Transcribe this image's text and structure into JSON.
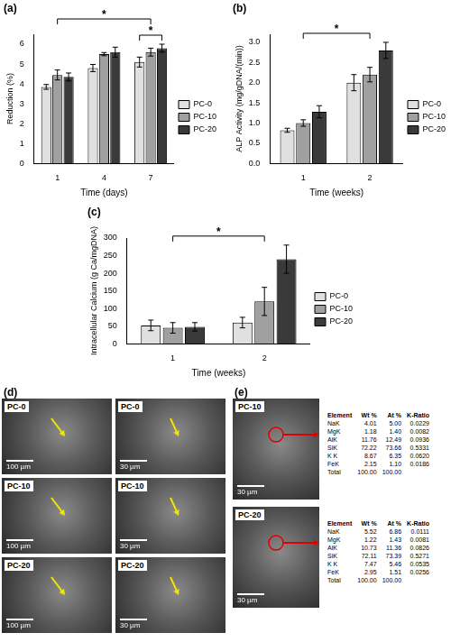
{
  "chart_data": [
    {
      "type": "bar",
      "panel": "(a)",
      "x_label": "Time (days)",
      "y_label": "Reduction (%)",
      "categories": [
        "1",
        "4",
        "7"
      ],
      "series": [
        {
          "name": "PC-0",
          "color": "#e0e0e0",
          "values": [
            3.85,
            4.8,
            5.1
          ],
          "errors": [
            0.12,
            0.18,
            0.25
          ]
        },
        {
          "name": "PC-10",
          "color": "#a0a0a0",
          "values": [
            4.45,
            5.5,
            5.6
          ],
          "errors": [
            0.25,
            0.08,
            0.2
          ]
        },
        {
          "name": "PC-20",
          "color": "#3a3a3a",
          "values": [
            4.35,
            5.6,
            5.8
          ],
          "errors": [
            0.2,
            0.25,
            0.2
          ]
        }
      ],
      "ylim": [
        0,
        6.5
      ],
      "yticks": [
        0,
        1,
        2,
        3,
        4,
        5,
        6
      ],
      "grid": false,
      "legend": "right",
      "annotations": [
        {
          "text": "*",
          "category": "7",
          "from": "PC-0",
          "to": "PC-20"
        },
        {
          "text": "*",
          "from": "1",
          "to": "7"
        }
      ]
    },
    {
      "type": "bar",
      "panel": "(b)",
      "x_label": "Time (weeks)",
      "y_label": "ALP Activity (mg/gDNA/(min))",
      "categories": [
        "1",
        "2"
      ],
      "series": [
        {
          "name": "PC-0",
          "color": "#e0e0e0",
          "values": [
            0.82,
            2.0
          ],
          "errors": [
            0.05,
            0.2
          ]
        },
        {
          "name": "PC-10",
          "color": "#a0a0a0",
          "values": [
            1.0,
            2.2
          ],
          "errors": [
            0.08,
            0.18
          ]
        },
        {
          "name": "PC-20",
          "color": "#3a3a3a",
          "values": [
            1.28,
            2.8
          ],
          "errors": [
            0.15,
            0.2
          ]
        }
      ],
      "ylim": [
        0,
        3.2
      ],
      "yticks": [
        {
          "value": 0,
          "label": "0.0"
        },
        {
          "value": 0.5,
          "label": "0.5"
        },
        {
          "value": 1,
          "label": "1.0"
        },
        {
          "value": 1.5,
          "label": "1.5"
        },
        {
          "value": 2,
          "label": "2.0"
        },
        {
          "value": 2.5,
          "label": "2.5"
        },
        {
          "value": 3,
          "label": "3.0"
        }
      ],
      "grid": false,
      "legend": "right",
      "annotations": [
        {
          "text": "*",
          "from": "1",
          "to": "2"
        }
      ]
    },
    {
      "type": "bar",
      "panel": "(c)",
      "x_label": "Time (weeks)",
      "y_label": "Intracellular Calcium (g Ca/mgDNA)",
      "categories": [
        "1",
        "2"
      ],
      "series": [
        {
          "name": "PC-0",
          "color": "#e0e0e0",
          "values": [
            52,
            60
          ],
          "errors": [
            15,
            15
          ]
        },
        {
          "name": "PC-10",
          "color": "#a0a0a0",
          "values": [
            45,
            120
          ],
          "errors": [
            15,
            40
          ]
        },
        {
          "name": "PC-20",
          "color": "#3a3a3a",
          "values": [
            48,
            240
          ],
          "errors": [
            12,
            40
          ]
        }
      ],
      "ylim": [
        0,
        300
      ],
      "yticks": [
        0,
        50,
        100,
        150,
        200,
        250,
        300
      ],
      "grid": false,
      "legend": "right",
      "annotations": [
        {
          "text": "*",
          "from": "1",
          "to": "2"
        }
      ]
    }
  ],
  "sem": {
    "panel": "(d)",
    "rows": [
      {
        "label": "PC-0",
        "scale_bars": [
          "100 µm",
          "30 µm"
        ]
      },
      {
        "label": "PC-10",
        "scale_bars": [
          "100 µm",
          "30 µm"
        ]
      },
      {
        "label": "PC-20",
        "scale_bars": [
          "100 µm",
          "30 µm"
        ]
      }
    ]
  },
  "eds": {
    "panel": "(e)",
    "rows": [
      {
        "label": "PC-10",
        "scale_bar": "30 µm",
        "columns": [
          "Element",
          "Wt %",
          "At %",
          "K-Ratio"
        ],
        "cells": [
          [
            "NaK",
            "4.01",
            "5.00",
            "0.0229"
          ],
          [
            "MgK",
            "1.18",
            "1.40",
            "0.0082"
          ],
          [
            "AlK",
            "11.76",
            "12.49",
            "0.0936"
          ],
          [
            "SiK",
            "72.22",
            "73.66",
            "0.5331"
          ],
          [
            "K K",
            "8.67",
            "6.35",
            "0.0620"
          ],
          [
            "FeK",
            "2.15",
            "1.10",
            "0.0186"
          ],
          [
            "Total",
            "100.00",
            "100.00",
            ""
          ]
        ]
      },
      {
        "label": "PC-20",
        "scale_bar": "30 µm",
        "columns": [
          "Element",
          "Wt %",
          "At %",
          "K-Ratio"
        ],
        "cells": [
          [
            "NaK",
            "5.52",
            "6.86",
            "0.0111"
          ],
          [
            "MgK",
            "1.22",
            "1.43",
            "0.0081"
          ],
          [
            "AlK",
            "10.73",
            "11.36",
            "0.0826"
          ],
          [
            "SiK",
            "72.11",
            "73.39",
            "0.5271"
          ],
          [
            "K K",
            "7.47",
            "5.46",
            "0.0535"
          ],
          [
            "FeK",
            "2.95",
            "1.51",
            "0.0256"
          ],
          [
            "Total",
            "100.00",
            "100.00",
            ""
          ]
        ]
      }
    ]
  }
}
